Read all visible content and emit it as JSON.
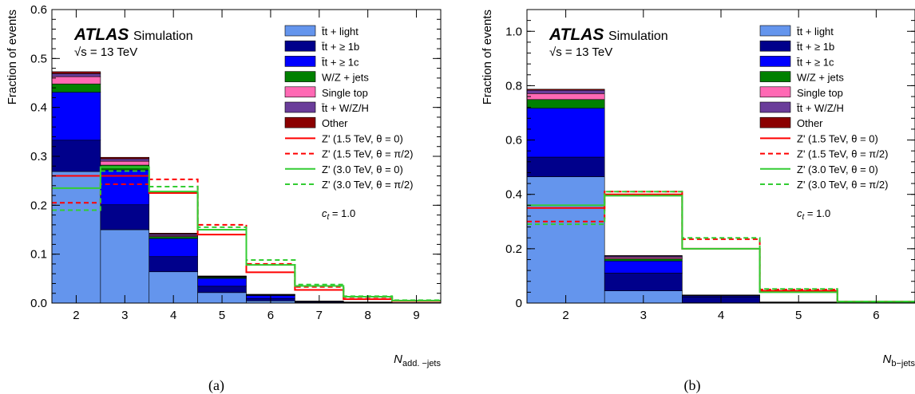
{
  "stack_order": [
    "ttlight",
    "tt1b",
    "tt1c",
    "wzjets",
    "singletop",
    "ttwzh",
    "other"
  ],
  "legend": {
    "labels": {
      "ttlight": "t̄t + light",
      "tt1b": "t̄t + ≥ 1b",
      "tt1c": "t̄t + ≥ 1c",
      "wzjets": "W/Z + jets",
      "singletop": "Single top",
      "ttwzh": "t̄t + W/Z/H",
      "other": "Other",
      "z15_0": "Z' (1.5 TeV, θ = 0)",
      "z15_pi2": "Z' (1.5 TeV, θ = π/2)",
      "z30_0": "Z' (3.0 TeV, θ = 0)",
      "z30_pi2": "Z' (3.0 TeV, θ = π/2)"
    },
    "colors": {
      "ttlight": "#6495ED",
      "tt1b": "#00008B",
      "tt1c": "#0000FF",
      "wzjets": "#008000",
      "singletop": "#FF69B4",
      "ttwzh": "#6A3D9A",
      "other": "#8B0000",
      "z15": "#FF0000",
      "z30": "#33CC33"
    }
  },
  "atlas": {
    "brand": "ATLAS",
    "label": "Simulation",
    "energy": "√s = 13 TeV",
    "coupling": "c_t = 1.0"
  },
  "captions": [
    "(a)",
    "(b)"
  ],
  "chart_data": [
    {
      "type": "bar",
      "subtype": "stacked-histogram-with-step-overlays",
      "ylabel": "Fraction of events",
      "xlabel": "N_add. −jets",
      "categories": [
        "2",
        "3",
        "4",
        "5",
        "6",
        "7",
        "8",
        "9"
      ],
      "ylim": [
        0,
        0.6
      ],
      "yticks": [
        "0.0",
        "0.1",
        "0.2",
        "0.3",
        "0.4",
        "0.5",
        "0.6"
      ],
      "stack_total": [
        0.473,
        0.298,
        0.143,
        0.055,
        0.018,
        0.004,
        0.002,
        0.001
      ],
      "stack": {
        "other": [
          0.004,
          0.003,
          0.002,
          0.001,
          0.0005,
          0.0002,
          0.0001,
          0.0
        ],
        "ttwzh": [
          0.006,
          0.005,
          0.003,
          0.001,
          0.0005,
          0.0002,
          0.0001,
          0.0
        ],
        "singletop": [
          0.015,
          0.008,
          0.002,
          0.001,
          0.0005,
          0.0002,
          0.0001,
          0.0
        ],
        "wzjets": [
          0.017,
          0.01,
          0.004,
          0.002,
          0.001,
          0.0004,
          0.0002,
          0.0
        ],
        "tt1c": [
          0.098,
          0.071,
          0.037,
          0.016,
          0.006,
          0.0015,
          0.0006,
          0.0004
        ],
        "tt1b": [
          0.064,
          0.051,
          0.031,
          0.013,
          0.005,
          0.0012,
          0.0006,
          0.0004
        ],
        "ttlight": [
          0.269,
          0.15,
          0.064,
          0.0215,
          0.0045,
          0.0005,
          0.0005,
          0.0002
        ]
      },
      "lines": [
        {
          "key": "z15_0",
          "dash": false,
          "color": "#FF0000",
          "values": [
            0.26,
            0.26,
            0.225,
            0.14,
            0.063,
            0.027,
            0.008,
            0.004
          ]
        },
        {
          "key": "z15_pi2",
          "dash": true,
          "color": "#FF0000",
          "values": [
            0.205,
            0.243,
            0.253,
            0.16,
            0.08,
            0.033,
            0.012,
            0.005
          ]
        },
        {
          "key": "z30_0",
          "dash": false,
          "color": "#33CC33",
          "values": [
            0.235,
            0.278,
            0.228,
            0.15,
            0.078,
            0.035,
            0.013,
            0.005
          ]
        },
        {
          "key": "z30_pi2",
          "dash": true,
          "color": "#33CC33",
          "values": [
            0.19,
            0.27,
            0.238,
            0.155,
            0.088,
            0.038,
            0.014,
            0.006
          ]
        }
      ]
    },
    {
      "type": "bar",
      "subtype": "stacked-histogram-with-step-overlays",
      "ylabel": "Fraction of events",
      "xlabel": "N_b−jets",
      "categories": [
        "2",
        "3",
        "4",
        "5",
        "6"
      ],
      "ylim": [
        0,
        1.08
      ],
      "yticks": [
        "0",
        "0.2",
        "0.4",
        "0.6",
        "0.8",
        "1.0"
      ],
      "stack_total": [
        0.787,
        0.175,
        0.03,
        0.004,
        0.002
      ],
      "stack": {
        "other": [
          0.004,
          0.002,
          0.0005,
          0.0002,
          0.0
        ],
        "ttwzh": [
          0.012,
          0.005,
          0.001,
          0.0003,
          0.0
        ],
        "singletop": [
          0.022,
          0.005,
          0.001,
          0.0002,
          0.0
        ],
        "wzjets": [
          0.032,
          0.008,
          0.0015,
          0.0003,
          0.0
        ],
        "tt1c": [
          0.18,
          0.045,
          0.004,
          0.0005,
          0.0002
        ],
        "tt1b": [
          0.072,
          0.065,
          0.021,
          0.002,
          0.0014
        ],
        "ttlight": [
          0.465,
          0.045,
          0.001,
          0.0005,
          0.0004
        ]
      },
      "lines": [
        {
          "key": "z15_0",
          "dash": false,
          "color": "#FF0000",
          "values": [
            0.35,
            0.4,
            0.2,
            0.045,
            0.006
          ]
        },
        {
          "key": "z15_pi2",
          "dash": true,
          "color": "#FF0000",
          "values": [
            0.3,
            0.41,
            0.235,
            0.05,
            0.006
          ]
        },
        {
          "key": "z30_0",
          "dash": false,
          "color": "#33CC33",
          "values": [
            0.36,
            0.395,
            0.2,
            0.04,
            0.005
          ]
        },
        {
          "key": "z30_pi2",
          "dash": true,
          "color": "#33CC33",
          "values": [
            0.29,
            0.41,
            0.24,
            0.052,
            0.006
          ]
        }
      ]
    }
  ]
}
